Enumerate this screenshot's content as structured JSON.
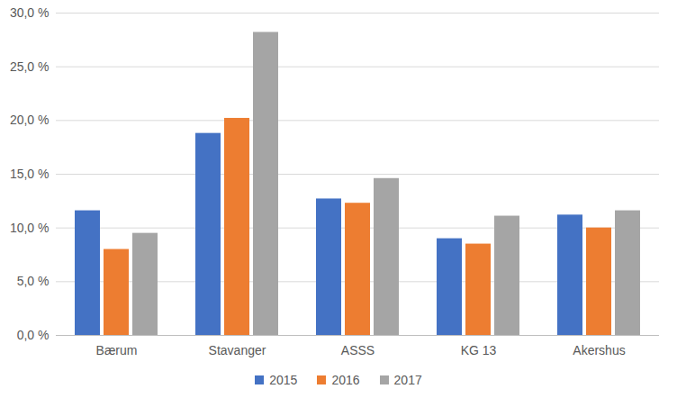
{
  "chart_data": {
    "type": "bar",
    "categories": [
      "Bærum",
      "Stavanger",
      "ASSS",
      "KG 13",
      "Akershus"
    ],
    "series": [
      {
        "name": "2015",
        "color": "#4472c4",
        "values": [
          11.6,
          18.8,
          12.7,
          9.0,
          11.2
        ]
      },
      {
        "name": "2016",
        "color": "#ed7d31",
        "values": [
          8.0,
          20.2,
          12.3,
          8.5,
          10.0
        ]
      },
      {
        "name": "2017",
        "color": "#a5a5a5",
        "values": [
          9.5,
          28.2,
          14.6,
          11.1,
          11.6
        ]
      }
    ],
    "ylim": [
      0,
      30
    ],
    "yticks": [
      {
        "value": 0,
        "label": "0,0 %"
      },
      {
        "value": 5,
        "label": "5,0 %"
      },
      {
        "value": 10,
        "label": "10,0 %"
      },
      {
        "value": 15,
        "label": "15,0 %"
      },
      {
        "value": 20,
        "label": "20,0 %"
      },
      {
        "value": 25,
        "label": "25,0 %"
      },
      {
        "value": 30,
        "label": "30,0 %"
      }
    ],
    "grid": true,
    "legend": "bottom"
  }
}
